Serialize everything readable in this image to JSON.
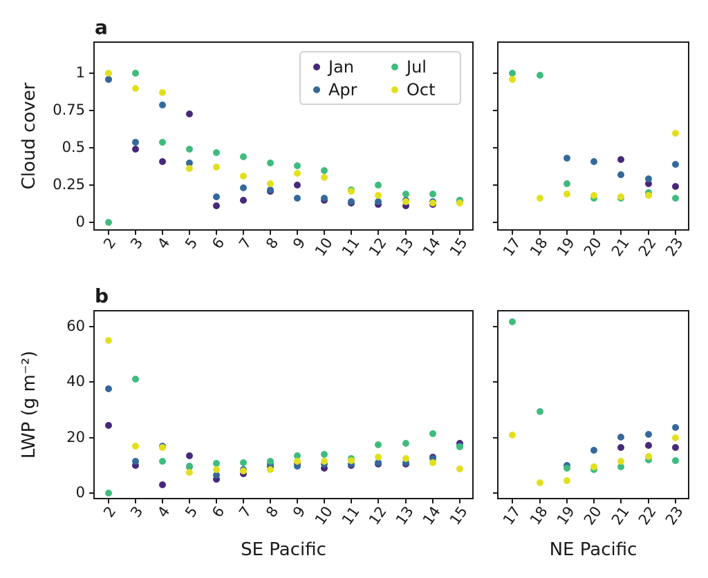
{
  "figure": {
    "panel_a_label": "a",
    "panel_b_label": "b",
    "se_xlabel": "SE Pacific",
    "ne_xlabel": "NE Pacific"
  },
  "legend": {
    "position": "upper right of panel a (SE Pacific)",
    "items": [
      {
        "label": "Jan",
        "color": "#46287c"
      },
      {
        "label": "Apr",
        "color": "#35699c"
      },
      {
        "label": "Jul",
        "color": "#3ebc7d"
      },
      {
        "label": "Oct",
        "color": "#e2e01d"
      }
    ]
  },
  "chart_data": [
    {
      "type": "scatter",
      "panel": "a",
      "ylabel": "Cloud cover",
      "ytick_values": [
        0,
        0.25,
        0.5,
        0.75,
        1
      ],
      "ytick_labels": [
        "0",
        "0.25",
        "0.5",
        "0.75",
        "1"
      ],
      "ylim": [
        -0.065,
        1.206
      ],
      "grid": false,
      "subpanels": [
        {
          "region": "SE Pacific",
          "xlim": [
            1.496,
            15.57
          ],
          "x": [
            2,
            3,
            4,
            5,
            6,
            7,
            8,
            9,
            10,
            11,
            12,
            13,
            14,
            15
          ],
          "series": [
            {
              "name": "Jan",
              "values": [
                0.96,
                0.49,
                0.41,
                0.73,
                0.11,
                0.15,
                0.21,
                0.25,
                0.15,
                0.13,
                0.12,
                0.11,
                0.12,
                0.15
              ]
            },
            {
              "name": "Apr",
              "values": [
                0.96,
                0.54,
                0.79,
                0.4,
                0.17,
                0.23,
                0.22,
                0.16,
                0.16,
                0.14,
                0.14,
                0.15,
                0.14,
                0.14
              ]
            },
            {
              "name": "Jul",
              "values": [
                0.0,
                1.0,
                0.54,
                0.49,
                0.47,
                0.44,
                0.4,
                0.38,
                0.35,
                0.22,
                0.25,
                0.19,
                0.19,
                0.15
              ]
            },
            {
              "name": "Oct",
              "values": [
                1.0,
                0.9,
                0.87,
                0.36,
                0.37,
                0.31,
                0.26,
                0.33,
                0.3,
                0.21,
                0.18,
                0.14,
                0.13,
                0.13
              ]
            }
          ]
        },
        {
          "region": "NE Pacific",
          "xlim": [
            16.483,
            23.56
          ],
          "x": [
            17,
            18,
            19,
            20,
            21,
            22,
            23
          ],
          "series": [
            {
              "name": "Jan",
              "values": [
                null,
                null,
                null,
                null,
                0.42,
                0.26,
                0.24
              ]
            },
            {
              "name": "Apr",
              "values": [
                null,
                null,
                0.43,
                0.41,
                0.32,
                0.29,
                0.39
              ]
            },
            {
              "name": "Jul",
              "values": [
                1.0,
                0.99,
                0.26,
                0.16,
                0.16,
                0.2,
                0.16
              ]
            },
            {
              "name": "Oct",
              "values": [
                0.96,
                0.16,
                0.19,
                0.18,
                0.17,
                0.18,
                0.6
              ]
            }
          ]
        }
      ]
    },
    {
      "type": "scatter",
      "panel": "b",
      "ylabel": "LWP (g m⁻²)",
      "ytick_values": [
        0,
        20,
        40,
        60
      ],
      "ytick_labels": [
        "0",
        "20",
        "40",
        "60"
      ],
      "ylim": [
        -2.82,
        65.58
      ],
      "grid": false,
      "subpanels": [
        {
          "region": "SE Pacific",
          "xlim": [
            1.496,
            15.57
          ],
          "x": [
            2,
            3,
            4,
            5,
            6,
            7,
            8,
            9,
            10,
            11,
            12,
            13,
            14,
            15
          ],
          "series": [
            {
              "name": "Jan",
              "values": [
                24.5,
                10.0,
                3.0,
                13.5,
                5.0,
                7.0,
                9.5,
                10.5,
                9.0,
                10.0,
                10.5,
                10.5,
                13.0,
                18.0
              ]
            },
            {
              "name": "Apr",
              "values": [
                37.5,
                11.5,
                17.0,
                9.5,
                6.3,
                8.5,
                10.5,
                9.7,
                10.3,
                10.5,
                11.0,
                11.0,
                12.5,
                17.0
              ]
            },
            {
              "name": "Jul",
              "values": [
                0.0,
                41.0,
                11.5,
                9.7,
                10.7,
                10.9,
                11.4,
                13.4,
                14.0,
                12.5,
                17.5,
                18.0,
                21.5,
                16.7
              ]
            },
            {
              "name": "Oct",
              "values": [
                55.0,
                17.0,
                16.5,
                7.5,
                8.5,
                8.0,
                8.5,
                11.3,
                11.5,
                11.7,
                13.0,
                12.3,
                11.0,
                8.6
              ]
            }
          ]
        },
        {
          "region": "NE Pacific",
          "xlim": [
            16.483,
            23.56
          ],
          "x": [
            17,
            18,
            19,
            20,
            21,
            22,
            23
          ],
          "series": [
            {
              "name": "Jan",
              "values": [
                null,
                null,
                null,
                null,
                16.5,
                17.1,
                16.5
              ]
            },
            {
              "name": "Apr",
              "values": [
                null,
                null,
                9.9,
                15.3,
                20.2,
                21.2,
                23.7
              ]
            },
            {
              "name": "Jul",
              "values": [
                61.8,
                29.3,
                8.8,
                8.5,
                9.3,
                12.0,
                11.6
              ]
            },
            {
              "name": "Oct",
              "values": [
                20.8,
                3.7,
                4.4,
                9.3,
                11.4,
                13.2,
                19.8
              ]
            }
          ]
        }
      ]
    }
  ]
}
